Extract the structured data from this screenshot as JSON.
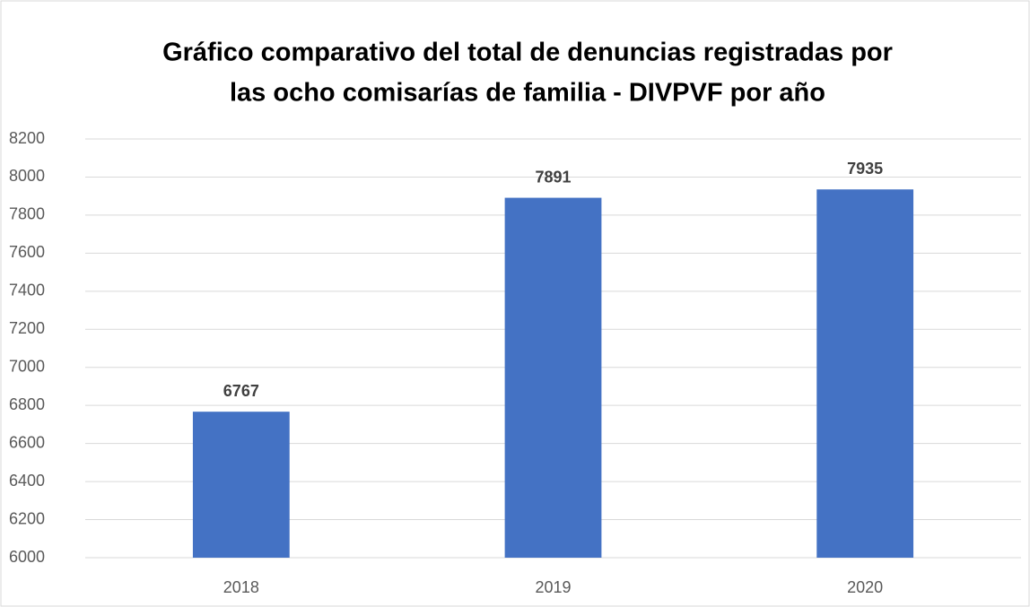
{
  "chart_data": {
    "type": "bar",
    "title": [
      "Gráfico comparativo del total de denuncias registradas por",
      "las ocho comisarías de familia - DIVPVF por año"
    ],
    "categories": [
      "2018",
      "2019",
      "2020"
    ],
    "values": [
      6767,
      7891,
      7935
    ],
    "color": "#4472c4",
    "ylim": [
      6000,
      8200
    ],
    "yticks": [
      6000,
      6200,
      6400,
      6600,
      6800,
      7000,
      7200,
      7400,
      7600,
      7800,
      8000,
      8200
    ],
    "grid": true
  }
}
